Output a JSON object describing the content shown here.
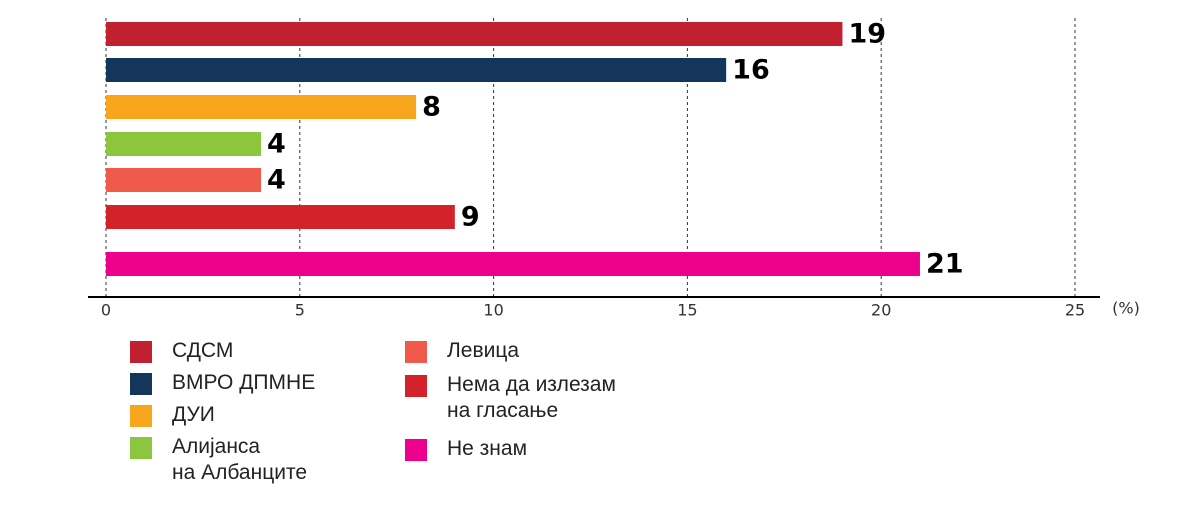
{
  "chart_data": {
    "type": "bar",
    "orientation": "horizontal",
    "categories": [
      "СДСМ",
      "ВМРО ДПМНЕ",
      "ДУИ",
      "Алијанса\nна Албанците",
      "Левица",
      "Нема да излезам\nна гласање",
      "Не знам"
    ],
    "values": [
      19,
      16,
      8,
      4,
      4,
      9,
      21
    ],
    "colors": [
      "#c0202f",
      "#13365a",
      "#f7a51c",
      "#8cc63f",
      "#ef5a4b",
      "#d2232a",
      "#ec008c"
    ],
    "xlabel": "(%)",
    "xlim": [
      0,
      25
    ],
    "xticks": [
      0,
      5,
      10,
      15,
      20,
      25
    ],
    "grid": true
  }
}
